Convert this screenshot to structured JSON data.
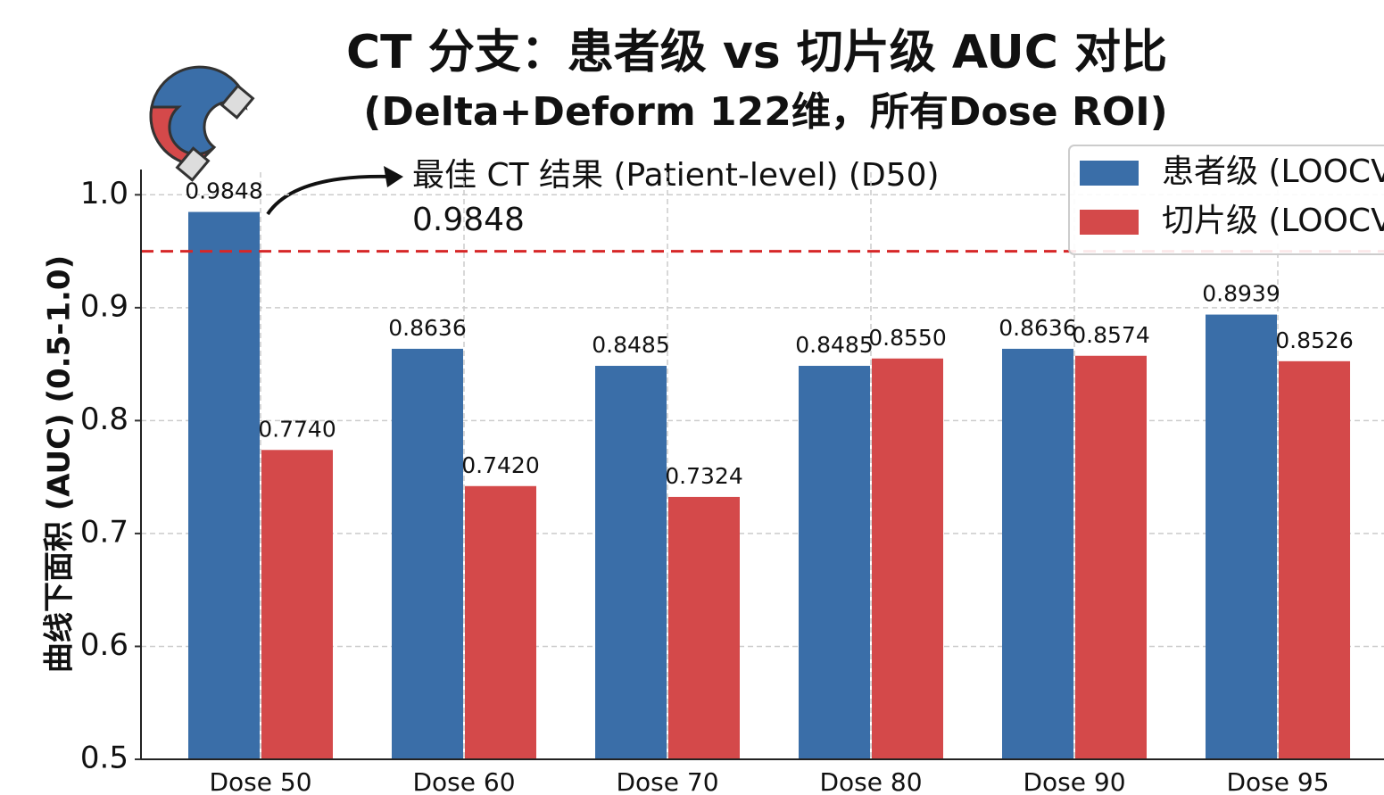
{
  "chart_data": {
    "type": "bar",
    "title": "CT 分支：患者级 vs 切片级 AUC 对比",
    "subtitle": "(Delta+Deform 122维，所有Dose ROI)",
    "y_label": "曲线下面积 (AUC) (0.5-1.0)",
    "categories": [
      "Dose 50",
      "Dose 60",
      "Dose 70",
      "Dose 80",
      "Dose 90",
      "Dose 95"
    ],
    "series": [
      {
        "name": "患者级 (LOOCV)",
        "color": "#3a6ea8",
        "values": [
          0.9848,
          0.8636,
          0.8485,
          0.8485,
          0.8636,
          0.8939
        ],
        "value_labels": [
          "0.9848",
          "0.8636",
          "0.8485",
          "0.8485",
          "0.8636",
          "0.8939"
        ]
      },
      {
        "name": "切片级 (LOOCV)",
        "color": "#d4494a",
        "values": [
          0.774,
          0.742,
          0.7324,
          0.855,
          0.8574,
          0.8526
        ],
        "value_labels": [
          "0.7740",
          "0.7420",
          "0.7324",
          "0.8550",
          "0.8574",
          "0.8526"
        ]
      }
    ],
    "ylim": [
      0.5,
      1.02
    ],
    "yticks": [
      0.5,
      0.6,
      0.7,
      0.8,
      0.9,
      {
        "value": 1,
        "label": "1.0"
      }
    ],
    "grid": true,
    "legend": "upper right",
    "reference_line": {
      "value": 0.95,
      "color": "#d62728"
    },
    "annotation": {
      "text": "最佳 CT 结果 (Patient-level) (D50)",
      "value": 0.9848
    }
  }
}
